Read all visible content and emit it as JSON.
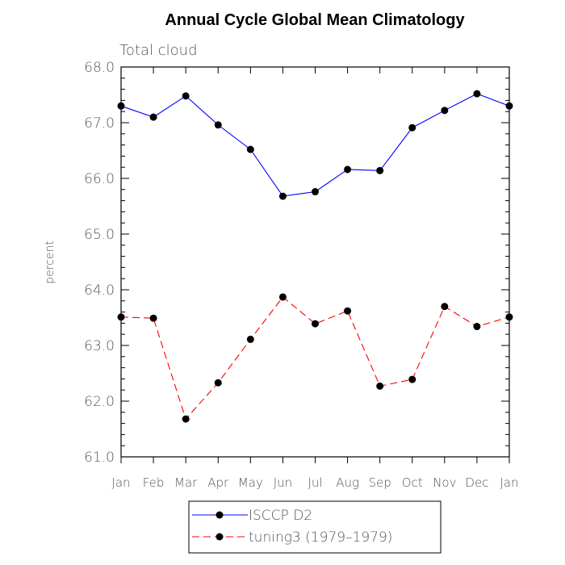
{
  "chart_data": {
    "type": "line",
    "title": "Annual Cycle Global Mean Climatology",
    "subtitle": "Total cloud",
    "ylabel": "percent",
    "xlabel": "",
    "ylim": [
      61.0,
      68.0
    ],
    "yticks": [
      "61.0",
      "62.0",
      "63.0",
      "64.0",
      "65.0",
      "66.0",
      "67.0",
      "68.0"
    ],
    "categories": [
      "Jan",
      "Feb",
      "Mar",
      "Apr",
      "May",
      "Jun",
      "Jul",
      "Aug",
      "Sep",
      "Oct",
      "Nov",
      "Dec",
      "Jan"
    ],
    "series": [
      {
        "name": "ISCCP D2",
        "color": "#0000ff",
        "dash": "solid",
        "values": [
          67.3,
          67.1,
          67.48,
          66.96,
          66.52,
          65.68,
          65.76,
          66.16,
          66.14,
          66.91,
          67.22,
          67.52,
          67.3
        ]
      },
      {
        "name": "tuning3 (1979–1979)",
        "color": "#ff0000",
        "dash": "dashed",
        "values": [
          63.51,
          63.49,
          61.68,
          62.33,
          63.11,
          63.87,
          63.39,
          63.62,
          62.27,
          62.39,
          63.7,
          63.34,
          63.51
        ]
      }
    ],
    "grid": false,
    "legend_placement": "bottom-center"
  }
}
